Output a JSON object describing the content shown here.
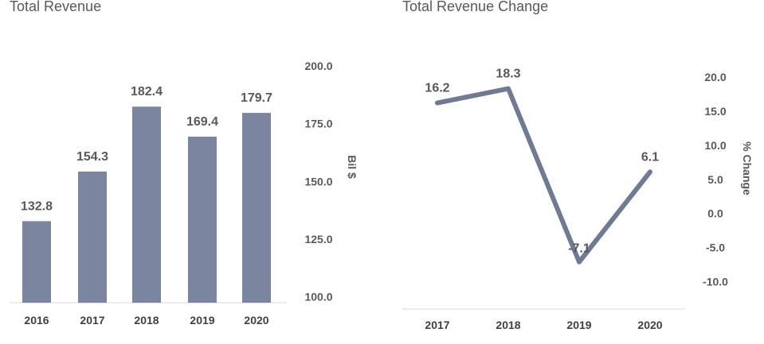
{
  "chart_data": [
    {
      "type": "bar",
      "title": "Total Revenue",
      "categories": [
        "2016",
        "2017",
        "2018",
        "2019",
        "2020"
      ],
      "values": [
        132.8,
        154.3,
        182.4,
        169.4,
        179.7
      ],
      "value_labels": [
        "132.8",
        "154.3",
        "182.4",
        "169.4",
        "179.7"
      ],
      "ylabel": "Bil $",
      "ylim": [
        97.5,
        210
      ],
      "yticks": [
        100,
        125,
        150,
        175,
        200
      ],
      "ytick_labels": [
        "100.0",
        "125.0",
        "150.0",
        "175.0",
        "200.0"
      ],
      "y_axis_side": "right",
      "color": "#7a869f",
      "grid": false
    },
    {
      "type": "line",
      "title": "Total Revenue Change",
      "categories": [
        "2017",
        "2018",
        "2019",
        "2020"
      ],
      "values": [
        16.2,
        18.3,
        -7.1,
        6.1
      ],
      "value_labels": [
        "16.2",
        "18.3",
        "-7.1",
        "6.1"
      ],
      "ylabel": "% Change",
      "ylim": [
        -14,
        25
      ],
      "yticks": [
        -10,
        -5,
        0,
        5,
        10,
        15,
        20
      ],
      "ytick_labels": [
        "-10.0",
        "-5.0",
        "0.0",
        "5.0",
        "10.0",
        "15.0",
        "20.0"
      ],
      "y_axis_side": "right",
      "color": "#6f7b95",
      "grid": false
    }
  ]
}
